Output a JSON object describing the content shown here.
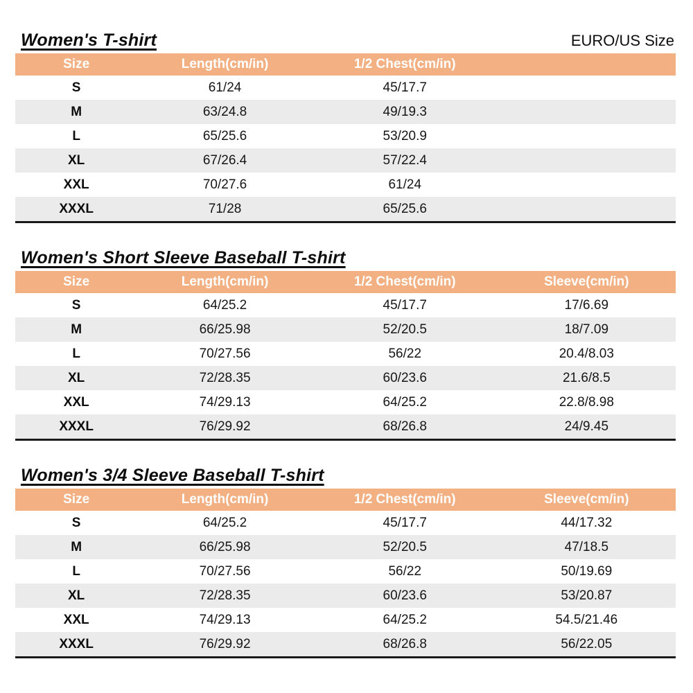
{
  "page": {
    "size_standard_label": "EURO/US Size"
  },
  "colors": {
    "header_bg": "#F2B083",
    "header_text": "#FFFFFF",
    "stripe_bg": "#EBEBEB",
    "table_bottom_rule": "#1A1A1A"
  },
  "tables": [
    {
      "title": "Women's T-shirt",
      "columns": [
        "Size",
        "Length(cm/in)",
        "1/2 Chest(cm/in)",
        ""
      ],
      "rows": [
        {
          "size": "S",
          "length": "61/24",
          "chest": "45/17.7",
          "sleeve": ""
        },
        {
          "size": "M",
          "length": "63/24.8",
          "chest": "49/19.3",
          "sleeve": ""
        },
        {
          "size": "L",
          "length": "65/25.6",
          "chest": "53/20.9",
          "sleeve": ""
        },
        {
          "size": "XL",
          "length": "67/26.4",
          "chest": "57/22.4",
          "sleeve": ""
        },
        {
          "size": "XXL",
          "length": "70/27.6",
          "chest": "61/24",
          "sleeve": ""
        },
        {
          "size": "XXXL",
          "length": "71/28",
          "chest": "65/25.6",
          "sleeve": ""
        }
      ]
    },
    {
      "title": "Women's Short Sleeve Baseball T-shirt",
      "columns": [
        "Size",
        "Length(cm/in)",
        "1/2 Chest(cm/in)",
        "Sleeve(cm/in)"
      ],
      "rows": [
        {
          "size": "S",
          "length": "64/25.2",
          "chest": "45/17.7",
          "sleeve": "17/6.69"
        },
        {
          "size": "M",
          "length": "66/25.98",
          "chest": "52/20.5",
          "sleeve": "18/7.09"
        },
        {
          "size": "L",
          "length": "70/27.56",
          "chest": "56/22",
          "sleeve": "20.4/8.03"
        },
        {
          "size": "XL",
          "length": "72/28.35",
          "chest": "60/23.6",
          "sleeve": "21.6/8.5"
        },
        {
          "size": "XXL",
          "length": "74/29.13",
          "chest": "64/25.2",
          "sleeve": "22.8/8.98"
        },
        {
          "size": "XXXL",
          "length": "76/29.92",
          "chest": "68/26.8",
          "sleeve": "24/9.45"
        }
      ]
    },
    {
      "title": "Women's 3/4 Sleeve Baseball T-shirt",
      "columns": [
        "Size",
        "Length(cm/in)",
        "1/2 Chest(cm/in)",
        "Sleeve(cm/in)"
      ],
      "rows": [
        {
          "size": "S",
          "length": "64/25.2",
          "chest": "45/17.7",
          "sleeve": "44/17.32"
        },
        {
          "size": "M",
          "length": "66/25.98",
          "chest": "52/20.5",
          "sleeve": "47/18.5"
        },
        {
          "size": "L",
          "length": "70/27.56",
          "chest": "56/22",
          "sleeve": "50/19.69"
        },
        {
          "size": "XL",
          "length": "72/28.35",
          "chest": "60/23.6",
          "sleeve": "53/20.87"
        },
        {
          "size": "XXL",
          "length": "74/29.13",
          "chest": "64/25.2",
          "sleeve": "54.5/21.46"
        },
        {
          "size": "XXXL",
          "length": "76/29.92",
          "chest": "68/26.8",
          "sleeve": "56/22.05"
        }
      ]
    }
  ]
}
